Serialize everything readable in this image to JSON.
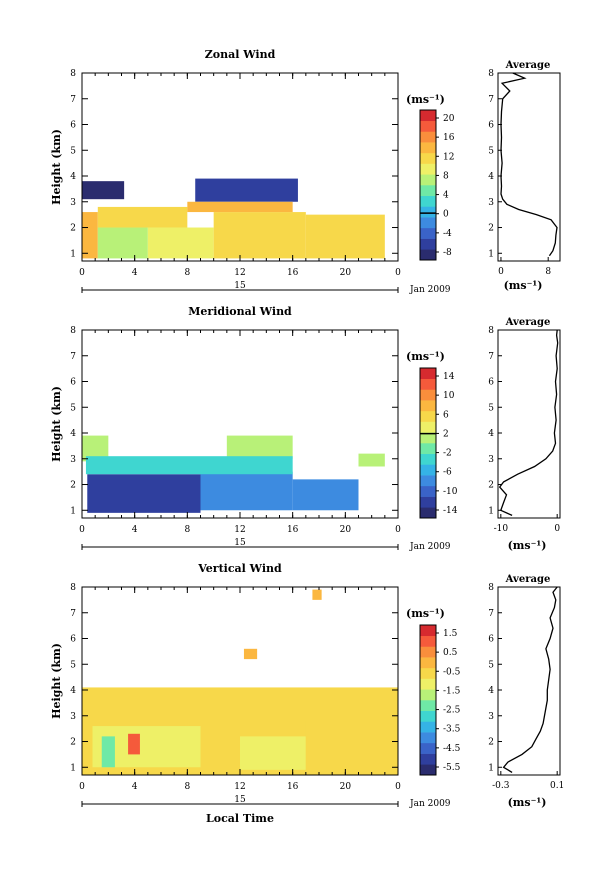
{
  "figure": {
    "date_label": "Jan 2009",
    "day_label": "15",
    "xlabel_main": "Local Time",
    "avg_title": "Average",
    "unit_label": "(ms⁻¹)",
    "ylabel": "Height (km)"
  },
  "chart_data": [
    {
      "type": "heatmap",
      "title": "Zonal Wind",
      "xlabel": "",
      "ylabel": "Height (km)",
      "x_ticks": [
        "0",
        "4",
        "8",
        "12",
        "16",
        "20",
        "0"
      ],
      "y_ticks": [
        "1",
        "2",
        "3",
        "4",
        "5",
        "6",
        "7",
        "8"
      ],
      "xlim": [
        0,
        24
      ],
      "ylim": [
        0.7,
        8
      ],
      "colorbar": {
        "unit": "(ms⁻¹)",
        "ticks": [
          "20",
          "16",
          "12",
          "8",
          "4",
          "0",
          "-4",
          "-8"
        ],
        "range": [
          -10,
          22
        ],
        "marker": 0
      },
      "cells": [
        {
          "t0": 0,
          "t1": 3.2,
          "h0": 3.1,
          "h1": 3.8,
          "v": -8
        },
        {
          "t0": 8.6,
          "t1": 16.4,
          "h0": 3.0,
          "h1": 3.9,
          "v": -7
        },
        {
          "t0": 0,
          "t1": 1.2,
          "h0": 0.8,
          "h1": 2.6,
          "v": 14
        },
        {
          "t0": 1.2,
          "t1": 5,
          "h0": 0.8,
          "h1": 2.0,
          "v": 7
        },
        {
          "t0": 1.2,
          "t1": 8,
          "h0": 2.0,
          "h1": 2.8,
          "v": 12
        },
        {
          "t0": 5,
          "t1": 10,
          "h0": 0.8,
          "h1": 2.0,
          "v": 10
        },
        {
          "t0": 10,
          "t1": 17,
          "h0": 0.8,
          "h1": 2.6,
          "v": 12
        },
        {
          "t0": 17,
          "t1": 23,
          "h0": 0.8,
          "h1": 2.5,
          "v": 11
        },
        {
          "t0": 8,
          "t1": 16,
          "h0": 2.6,
          "h1": 3.0,
          "v": 14
        }
      ],
      "profile": {
        "xlabel": "(ms⁻¹)",
        "x_ticks": [
          "0",
          "8"
        ],
        "xlim": [
          -0.5,
          10
        ],
        "h": [
          0.9,
          1.1,
          1.4,
          1.7,
          2.0,
          2.3,
          2.5,
          2.7,
          2.9,
          3.1,
          3.3,
          3.6,
          4.0,
          4.5,
          5.0,
          5.5,
          6.0,
          6.5,
          7.0,
          7.3,
          7.6,
          7.8,
          8.0
        ],
        "v": [
          8.2,
          8.8,
          9.2,
          9.3,
          9.5,
          8.5,
          6.0,
          3.0,
          1.0,
          0.3,
          0.0,
          0.1,
          0.0,
          0.2,
          0.0,
          0.1,
          0.0,
          0.1,
          0.3,
          1.5,
          0.2,
          4.0,
          2.0
        ]
      }
    },
    {
      "type": "heatmap",
      "title": "Meridional Wind",
      "xlabel": "",
      "ylabel": "Height (km)",
      "x_ticks": [
        "0",
        "4",
        "8",
        "12",
        "16",
        "20",
        "0"
      ],
      "y_ticks": [
        "1",
        "2",
        "3",
        "4",
        "5",
        "6",
        "7",
        "8"
      ],
      "xlim": [
        0,
        24
      ],
      "ylim": [
        0.7,
        8
      ],
      "colorbar": {
        "unit": "(ms⁻¹)",
        "ticks": [
          "14",
          "10",
          "6",
          "2",
          "-2",
          "-6",
          "-10",
          "-14"
        ],
        "range": [
          -16,
          16
        ],
        "marker": 2
      },
      "cells": [
        {
          "t0": 0,
          "t1": 2,
          "h0": 2.9,
          "h1": 3.9,
          "v": 0
        },
        {
          "t0": 11,
          "t1": 16,
          "h0": 3.0,
          "h1": 3.9,
          "v": 1
        },
        {
          "t0": 0.4,
          "t1": 9,
          "h0": 0.9,
          "h1": 2.4,
          "v": -13
        },
        {
          "t0": 9,
          "t1": 16,
          "h0": 1.0,
          "h1": 2.5,
          "v": -9
        },
        {
          "t0": 16,
          "t1": 21,
          "h0": 1.0,
          "h1": 2.2,
          "v": -8
        },
        {
          "t0": 0.3,
          "t1": 16,
          "h0": 2.4,
          "h1": 3.1,
          "v": -4
        },
        {
          "t0": 21,
          "t1": 23,
          "h0": 2.7,
          "h1": 3.2,
          "v": 1
        }
      ],
      "profile": {
        "xlabel": "(ms⁻¹)",
        "x_ticks": [
          "-10",
          "0"
        ],
        "xlim": [
          -10.5,
          0.5
        ],
        "h": [
          0.8,
          1.0,
          1.3,
          1.6,
          1.9,
          2.1,
          2.4,
          2.7,
          3.0,
          3.3,
          3.6,
          4.0,
          4.5,
          5.0,
          5.5,
          6.0,
          6.5,
          7.0,
          7.5,
          7.8,
          8.0
        ],
        "v": [
          -8.0,
          -10.0,
          -9.5,
          -9.0,
          -10.2,
          -9.5,
          -7.0,
          -4.0,
          -2.0,
          -0.8,
          -0.3,
          -0.5,
          -0.2,
          -0.4,
          -0.1,
          -0.3,
          0.0,
          -0.2,
          0.1,
          -0.1,
          0.0
        ]
      }
    },
    {
      "type": "heatmap",
      "title": "Vertical Wind",
      "xlabel": "Local Time",
      "ylabel": "Height (km)",
      "x_ticks": [
        "0",
        "4",
        "8",
        "12",
        "16",
        "20",
        "0"
      ],
      "y_ticks": [
        "1",
        "2",
        "3",
        "4",
        "5",
        "6",
        "7",
        "8"
      ],
      "xlim": [
        0,
        24
      ],
      "ylim": [
        0.7,
        8
      ],
      "colorbar": {
        "unit": "(ms⁻¹)",
        "ticks": [
          "1.5",
          "0.5",
          "-0.5",
          "-1.5",
          "-2.5",
          "-3.5",
          "-4.5",
          "-5.5"
        ],
        "range": [
          -6,
          2
        ],
        "marker": null
      },
      "cells": [
        {
          "t0": 0,
          "t1": 24,
          "h0": 0.7,
          "h1": 4.1,
          "v": -0.3
        },
        {
          "t0": 0.8,
          "t1": 9,
          "h0": 1.0,
          "h1": 2.6,
          "v": -1.2
        },
        {
          "t0": 12,
          "t1": 17,
          "h0": 0.9,
          "h1": 2.2,
          "v": -1.3
        },
        {
          "t0": 1.5,
          "t1": 2.5,
          "h0": 1.0,
          "h1": 2.2,
          "v": -2.2
        },
        {
          "t0": 3.5,
          "t1": 4.4,
          "h0": 1.5,
          "h1": 2.3,
          "v": 0.9
        },
        {
          "t0": 17,
          "t1": 24,
          "h0": 0.8,
          "h1": 2.8,
          "v": -0.7
        },
        {
          "t0": 12.3,
          "t1": 13.3,
          "h0": 5.2,
          "h1": 5.6,
          "v": 0.1
        },
        {
          "t0": 17.5,
          "t1": 18.2,
          "h0": 7.5,
          "h1": 7.9,
          "v": -0.2
        }
      ],
      "profile": {
        "xlabel": "(ms⁻¹)",
        "x_ticks": [
          "-0.3",
          "0.1"
        ],
        "xlim": [
          -0.32,
          0.12
        ],
        "h": [
          0.8,
          1.0,
          1.2,
          1.5,
          1.8,
          2.1,
          2.4,
          2.7,
          3.0,
          3.3,
          3.6,
          4.0,
          4.4,
          4.8,
          5.2,
          5.6,
          6.0,
          6.4,
          6.8,
          7.2,
          7.5,
          7.8,
          8.0
        ],
        "v": [
          -0.22,
          -0.28,
          -0.25,
          -0.15,
          -0.08,
          -0.05,
          -0.02,
          0.0,
          0.01,
          0.02,
          0.03,
          0.03,
          0.04,
          0.05,
          0.04,
          0.02,
          0.05,
          0.07,
          0.05,
          0.08,
          0.09,
          0.07,
          0.1
        ]
      }
    }
  ]
}
